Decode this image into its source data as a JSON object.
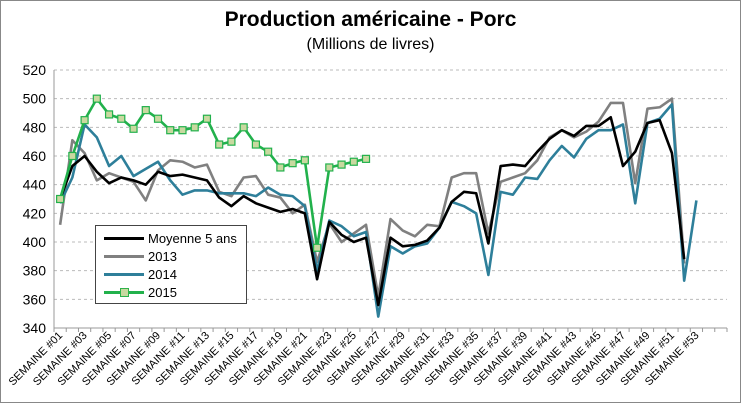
{
  "chart_data": {
    "type": "line",
    "title": "Production américaine - Porc",
    "subtitle": "(Millions de livres)",
    "xlabel": "",
    "ylabel": "",
    "ylim": [
      340,
      520
    ],
    "yticks": [
      "340",
      "360",
      "380",
      "400",
      "420",
      "440",
      "460",
      "480",
      "500",
      "520"
    ],
    "grid": true,
    "legend_position": "left-center",
    "categories": [
      "SEMAINE #01",
      "SEMAINE #02",
      "SEMAINE #03",
      "SEMAINE #04",
      "SEMAINE #05",
      "SEMAINE #06",
      "SEMAINE #07",
      "SEMAINE #08",
      "SEMAINE #09",
      "SEMAINE #10",
      "SEMAINE #11",
      "SEMAINE #12",
      "SEMAINE #13",
      "SEMAINE #14",
      "SEMAINE #15",
      "SEMAINE #16",
      "SEMAINE #17",
      "SEMAINE #18",
      "SEMAINE #19",
      "SEMAINE #20",
      "SEMAINE #21",
      "SEMAINE #22",
      "SEMAINE #23",
      "SEMAINE #24",
      "SEMAINE #25",
      "SEMAINE #26",
      "SEMAINE #27",
      "SEMAINE #28",
      "SEMAINE #29",
      "SEMAINE #30",
      "SEMAINE #31",
      "SEMAINE #32",
      "SEMAINE #33",
      "SEMAINE #34",
      "SEMAINE #35",
      "SEMAINE #36",
      "SEMAINE #37",
      "SEMAINE #38",
      "SEMAINE #39",
      "SEMAINE #40",
      "SEMAINE #41",
      "SEMAINE #42",
      "SEMAINE #43",
      "SEMAINE #44",
      "SEMAINE #45",
      "SEMAINE #46",
      "SEMAINE #47",
      "SEMAINE #48",
      "SEMAINE #49",
      "SEMAINE #50",
      "SEMAINE #51",
      "SEMAINE #52",
      "SEMAINE #53",
      "SEMAINE #54"
    ],
    "series": [
      {
        "name": "2013",
        "color": "#808080",
        "marker": false,
        "values": [
          412,
          471,
          462,
          443,
          448,
          445,
          442,
          429,
          450,
          457,
          456,
          452,
          454,
          435,
          432,
          445,
          446,
          433,
          431,
          420,
          426,
          386,
          413,
          400,
          406,
          412,
          362,
          416,
          408,
          404,
          412,
          411,
          445,
          448,
          448,
          406,
          442,
          445,
          448,
          457,
          473,
          478,
          473,
          477,
          484,
          497,
          497,
          441,
          493,
          494,
          500,
          385,
          null,
          null
        ]
      },
      {
        "name": "2014",
        "color": "#2e7f9a",
        "marker": false,
        "values": [
          427,
          445,
          482,
          473,
          453,
          460,
          446,
          451,
          456,
          443,
          433,
          436,
          436,
          434,
          434,
          434,
          432,
          438,
          433,
          432,
          425,
          380,
          415,
          411,
          404,
          407,
          348,
          397,
          392,
          397,
          399,
          410,
          428,
          425,
          420,
          377,
          435,
          433,
          445,
          444,
          457,
          467,
          459,
          472,
          478,
          478,
          482,
          427,
          483,
          486,
          496,
          373,
          429,
          null
        ]
      },
      {
        "name": "Moyenne 5 ans",
        "color": "#000000",
        "marker": false,
        "values": [
          430,
          453,
          460,
          449,
          441,
          445,
          443,
          440,
          449,
          446,
          447,
          445,
          443,
          431,
          425,
          432,
          427,
          424,
          421,
          423,
          420,
          374,
          414,
          405,
          400,
          403,
          356,
          403,
          397,
          398,
          401,
          410,
          428,
          435,
          434,
          399,
          453,
          454,
          453,
          463,
          472,
          478,
          474,
          481,
          481,
          487,
          453,
          463,
          483,
          485,
          462,
          388,
          null,
          null
        ]
      },
      {
        "name": "2015",
        "color": "#22b14c",
        "marker": true,
        "values": [
          430,
          460,
          485,
          500,
          489,
          486,
          479,
          492,
          486,
          478,
          478,
          480,
          486,
          468,
          470,
          480,
          468,
          463,
          452,
          455,
          457,
          396,
          452,
          454,
          456,
          458,
          null,
          null,
          null,
          null,
          null,
          null,
          null,
          null,
          null,
          null,
          null,
          null,
          null,
          null,
          null,
          null,
          null,
          null,
          null,
          null,
          null,
          null,
          null,
          null,
          null,
          null,
          null,
          null
        ]
      }
    ]
  }
}
